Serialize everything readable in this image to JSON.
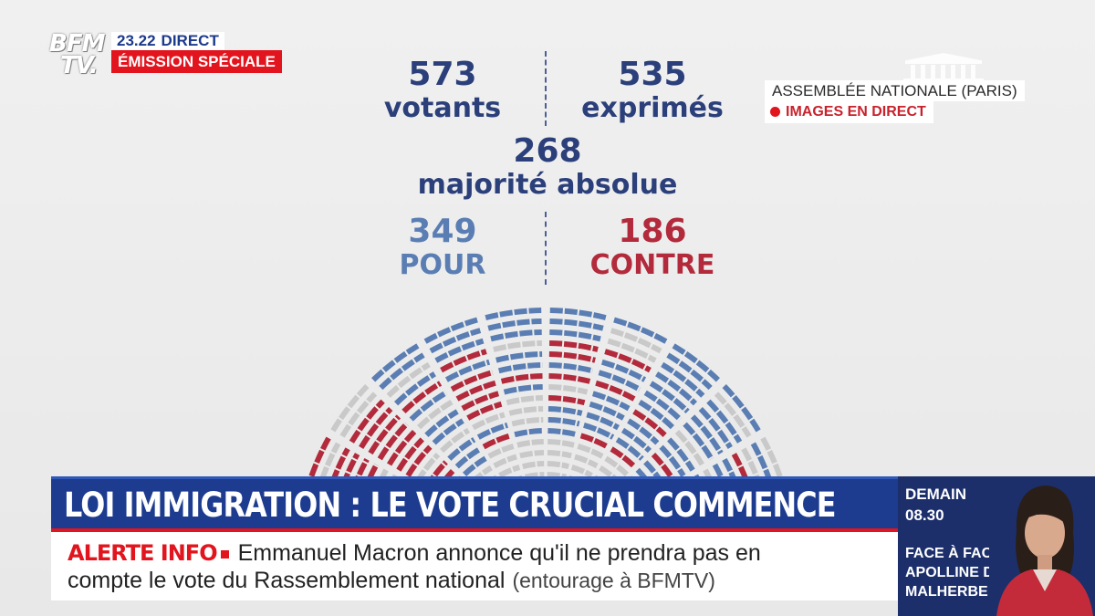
{
  "channel": {
    "logo_line1": "BFM",
    "logo_line2": "TV.",
    "time": "23.22",
    "live": "DIRECT",
    "program": "ÉMISSION SPÉCIALE"
  },
  "source": {
    "location": "ASSEMBLÉE NATIONALE (PARIS)",
    "live_feed": "IMAGES EN DIRECT"
  },
  "vote": {
    "votants": "573",
    "votants_label": "votants",
    "exprimes": "535",
    "exprimes_label": "exprimés",
    "majorite": "268",
    "majorite_label": "majorité absolue",
    "pour": "349",
    "pour_label": "POUR",
    "contre": "186",
    "contre_label": "CONTRE"
  },
  "hemicycle": {
    "colors": {
      "pour": "#5a7eb3",
      "contre": "#b22a3b",
      "absent": "#c9c9c9"
    }
  },
  "banner": {
    "headline": "LOI IMMIGRATION : LE VOTE CRUCIAL COMMENCE",
    "alert_tag": "ALERTE INFO",
    "alert_line1": "Emmanuel Macron annonce qu'il ne prendra pas en",
    "alert_line2": "compte le vote du Rassemblement national",
    "alert_source": "(entourage à BFMTV)"
  },
  "promo": {
    "day": "DEMAIN",
    "time": "08.30",
    "show_line1": "FACE À FACE",
    "show_line2": "APOLLINE DE",
    "show_line3": "MALHERBE"
  },
  "colors": {
    "brand_blue": "#1d3c8f",
    "alert_red": "#e2141d",
    "pour_blue": "#5a7eb3",
    "contre_red": "#b22a3b"
  }
}
